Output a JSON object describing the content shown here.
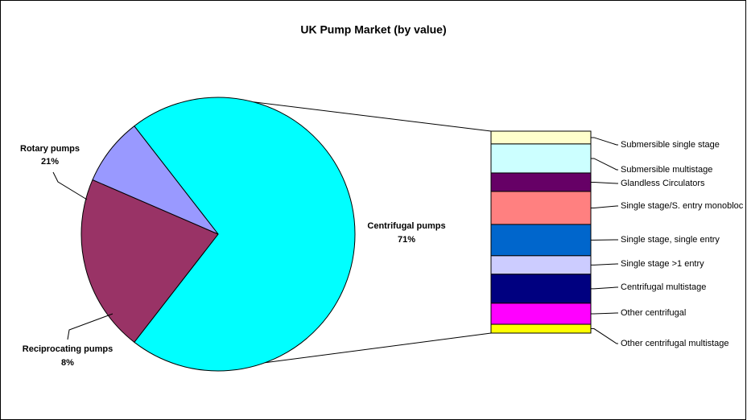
{
  "chart_data": {
    "type": "pie",
    "title": "UK Pump Market (by value)",
    "labels": [
      "Centrifugal pumps",
      "Rotary pumps",
      "Reciprocating pumps"
    ],
    "values": [
      71,
      21,
      8
    ],
    "value_labels": [
      "71%",
      "21%",
      "8%"
    ],
    "colors": [
      "#00FFFF",
      "#993366",
      "#9999FF"
    ],
    "breakdown": {
      "categories": [
        "Submersible single stage",
        "Submersible multistage",
        "Glandless Circulators",
        "Single stage/S. entry monobloc",
        "Single stage, single entry",
        "Single stage >1 entry",
        "Centrifugal multistage",
        "Other centrifugal",
        "Other centrifugal multistage"
      ],
      "values": [
        4.5,
        10.2,
        6.5,
        11.6,
        11.0,
        6.5,
        10.2,
        7.4,
        3.1
      ],
      "colors": [
        "#FFFFCC",
        "#CCFFFF",
        "#660066",
        "#FF8080",
        "#0066CC",
        "#CCCCFF",
        "#000080",
        "#FF00FF",
        "#FFFF00"
      ]
    }
  }
}
